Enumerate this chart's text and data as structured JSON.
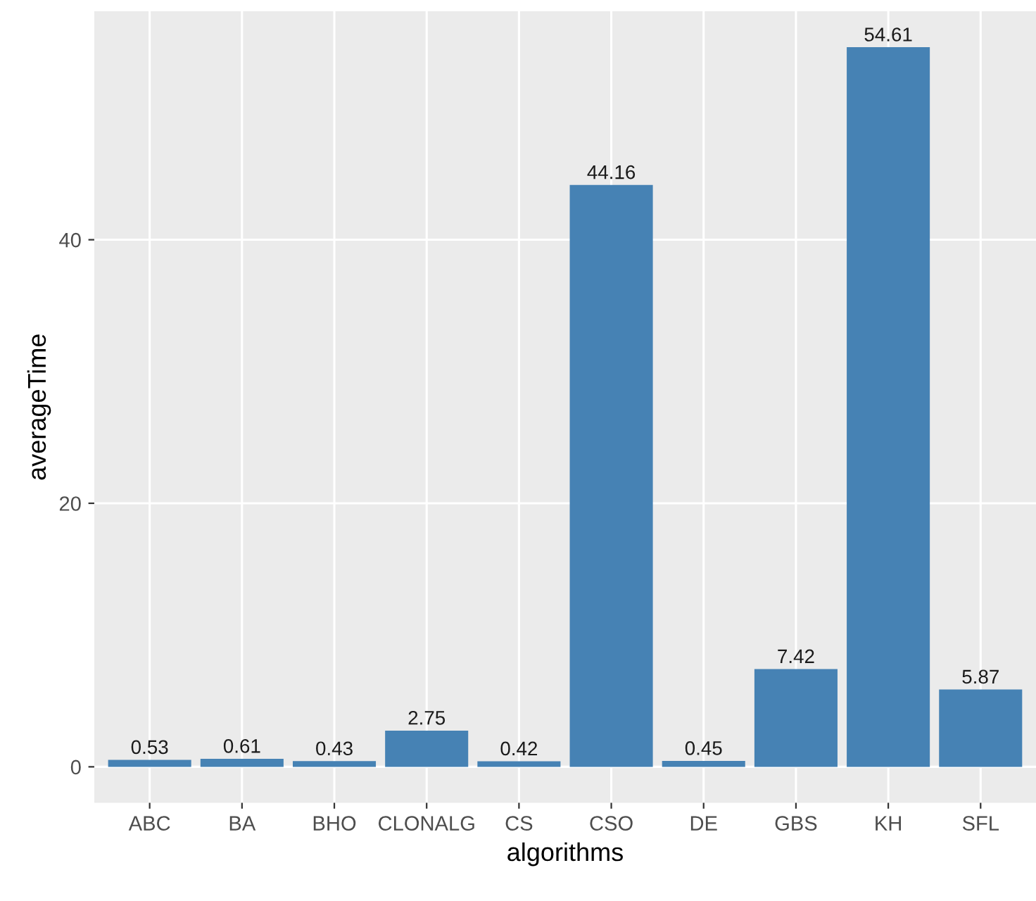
{
  "chart_data": {
    "type": "bar",
    "xlabel": "algorithms",
    "ylabel": "averageTime",
    "categories": [
      "ABC",
      "BA",
      "BHO",
      "CLONALG",
      "CS",
      "CSO",
      "DE",
      "GBS",
      "KH",
      "SFL"
    ],
    "values": [
      0.53,
      0.61,
      0.43,
      2.75,
      0.42,
      44.16,
      0.45,
      7.42,
      54.61,
      5.87
    ],
    "color": "#4682b4",
    "ylim": [
      -2.73,
      57.34
    ],
    "yticks": [
      0,
      20,
      40
    ],
    "grid": true,
    "data_labels": true
  }
}
